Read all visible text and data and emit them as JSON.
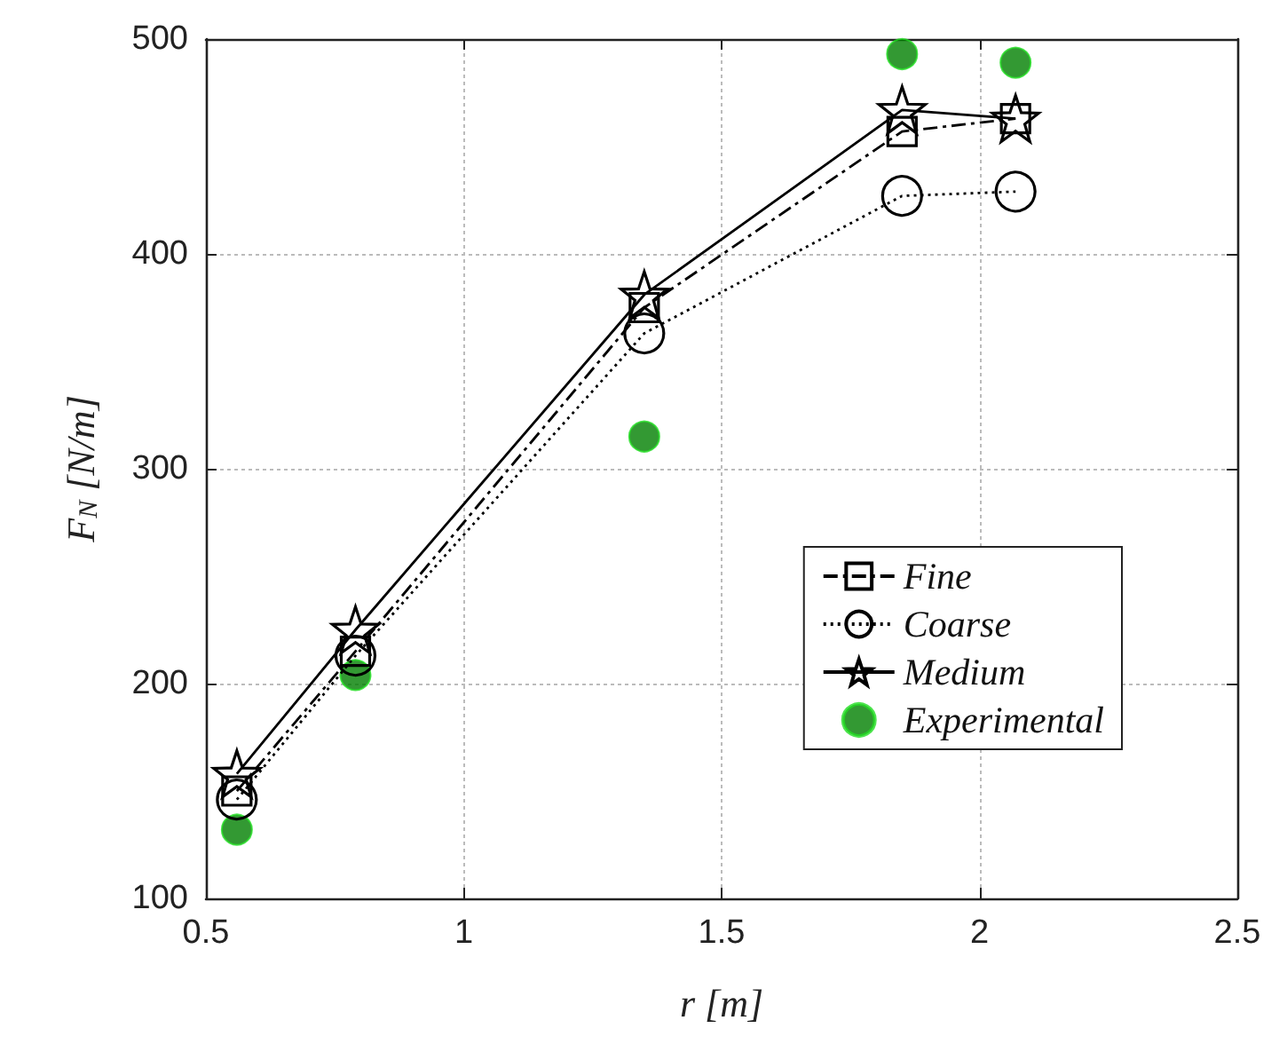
{
  "chart_data": {
    "type": "line",
    "xlabel": "r [m]",
    "ylabel": "F$_{N}$ [N/m]",
    "x": [
      0.56,
      0.79,
      1.35,
      1.85,
      2.07
    ],
    "series": [
      {
        "name": "Fine",
        "color": "#000000",
        "marker": "square",
        "line_style": "dashed",
        "values": [
          150,
          215,
          375,
          457,
          463
        ]
      },
      {
        "name": "Coarse",
        "color": "#000000",
        "marker": "circle",
        "line_style": "dotted",
        "values": [
          146,
          213,
          363,
          427,
          429
        ]
      },
      {
        "name": "Medium",
        "color": "#000000",
        "marker": "star",
        "line_style": "solid",
        "values": [
          158,
          225,
          381,
          467,
          463
        ]
      },
      {
        "name": "Experimental",
        "type": "scatter",
        "color": "#008000",
        "marker": "circle",
        "values": [
          132,
          204,
          315,
          493,
          489
        ]
      }
    ],
    "xlim": [
      0.5,
      2.5
    ],
    "xticks": [
      0.5,
      1,
      1.5,
      2,
      2.5
    ],
    "ylim": [
      100,
      500
    ],
    "yticks": [
      100,
      200,
      300,
      400,
      500
    ],
    "grid": true,
    "legend": "right"
  }
}
